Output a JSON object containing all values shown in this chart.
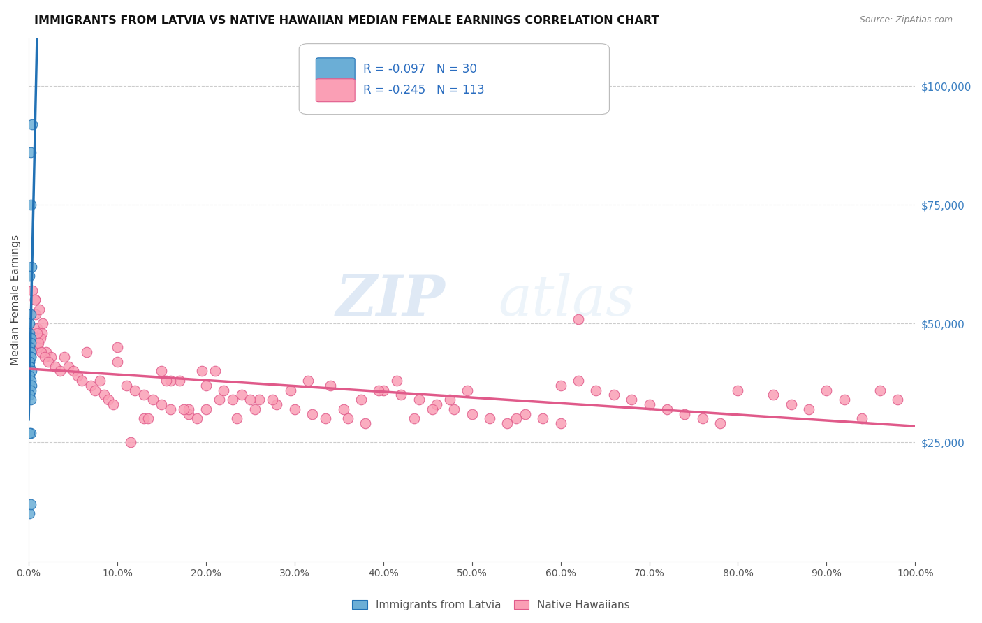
{
  "title": "IMMIGRANTS FROM LATVIA VS NATIVE HAWAIIAN MEDIAN FEMALE EARNINGS CORRELATION CHART",
  "source": "Source: ZipAtlas.com",
  "ylabel": "Median Female Earnings",
  "right_ytick_labels": [
    "$25,000",
    "$50,000",
    "$75,000",
    "$100,000"
  ],
  "right_ytick_values": [
    25000,
    50000,
    75000,
    100000
  ],
  "ylim": [
    0,
    110000
  ],
  "xlim": [
    0,
    1.0
  ],
  "legend_entry1": "R = -0.097   N = 30",
  "legend_entry2": "R = -0.245   N = 113",
  "legend_label1": "Immigrants from Latvia",
  "legend_label2": "Native Hawaiians",
  "color_blue": "#6baed6",
  "color_pink": "#fa9fb5",
  "color_trendline_blue": "#2171b5",
  "color_trendline_pink": "#e05a8a",
  "watermark_zip": "ZIP",
  "watermark_atlas": "atlas",
  "scatter_blue_x": [
    0.002,
    0.004,
    0.002,
    0.003,
    0.001,
    0.002,
    0.001,
    0.001,
    0.001,
    0.002,
    0.002,
    0.001,
    0.002,
    0.002,
    0.002,
    0.001,
    0.001,
    0.001,
    0.001,
    0.003,
    0.001,
    0.002,
    0.003,
    0.002,
    0.001,
    0.002,
    0.002,
    0.001,
    0.001,
    0.002
  ],
  "scatter_blue_y": [
    86000,
    92000,
    75000,
    62000,
    60000,
    52000,
    50000,
    48000,
    47000,
    47000,
    46000,
    45000,
    44000,
    43000,
    43000,
    42000,
    42000,
    41000,
    41000,
    40000,
    39000,
    38000,
    37000,
    36000,
    35000,
    34000,
    27000,
    27000,
    10000,
    12000
  ],
  "scatter_pink_x": [
    0.004,
    0.007,
    0.008,
    0.009,
    0.012,
    0.015,
    0.008,
    0.01,
    0.013,
    0.016,
    0.02,
    0.025,
    0.007,
    0.009,
    0.011,
    0.014,
    0.018,
    0.022,
    0.03,
    0.035,
    0.04,
    0.045,
    0.05,
    0.055,
    0.06,
    0.065,
    0.07,
    0.075,
    0.08,
    0.085,
    0.09,
    0.095,
    0.1,
    0.11,
    0.12,
    0.13,
    0.14,
    0.15,
    0.16,
    0.17,
    0.18,
    0.19,
    0.2,
    0.22,
    0.24,
    0.26,
    0.28,
    0.3,
    0.32,
    0.34,
    0.36,
    0.38,
    0.4,
    0.42,
    0.44,
    0.46,
    0.48,
    0.5,
    0.52,
    0.54,
    0.56,
    0.58,
    0.6,
    0.62,
    0.64,
    0.66,
    0.68,
    0.7,
    0.72,
    0.74,
    0.76,
    0.78,
    0.8,
    0.84,
    0.86,
    0.88,
    0.9,
    0.92,
    0.94,
    0.96,
    0.98,
    0.6,
    0.55,
    0.62,
    0.1,
    0.15,
    0.2,
    0.25,
    0.13,
    0.16,
    0.18,
    0.21,
    0.23,
    0.115,
    0.135,
    0.155,
    0.175,
    0.195,
    0.215,
    0.235,
    0.255,
    0.275,
    0.295,
    0.315,
    0.335,
    0.355,
    0.375,
    0.395,
    0.415,
    0.435,
    0.455,
    0.475,
    0.495
  ],
  "scatter_pink_y": [
    57000,
    55000,
    52000,
    49000,
    53000,
    48000,
    46000,
    45000,
    47000,
    50000,
    44000,
    43000,
    55000,
    48000,
    46000,
    44000,
    43000,
    42000,
    41000,
    40000,
    43000,
    41000,
    40000,
    39000,
    38000,
    44000,
    37000,
    36000,
    38000,
    35000,
    34000,
    33000,
    42000,
    37000,
    36000,
    35000,
    34000,
    33000,
    32000,
    38000,
    31000,
    30000,
    37000,
    36000,
    35000,
    34000,
    33000,
    32000,
    31000,
    37000,
    30000,
    29000,
    36000,
    35000,
    34000,
    33000,
    32000,
    31000,
    30000,
    29000,
    31000,
    30000,
    29000,
    51000,
    36000,
    35000,
    34000,
    33000,
    32000,
    31000,
    30000,
    29000,
    36000,
    35000,
    33000,
    32000,
    36000,
    34000,
    30000,
    36000,
    34000,
    37000,
    30000,
    38000,
    45000,
    40000,
    32000,
    34000,
    30000,
    38000,
    32000,
    40000,
    34000,
    25000,
    30000,
    38000,
    32000,
    40000,
    34000,
    30000,
    32000,
    34000,
    36000,
    38000,
    30000,
    32000,
    34000,
    36000,
    38000,
    30000,
    32000,
    34000,
    36000
  ]
}
